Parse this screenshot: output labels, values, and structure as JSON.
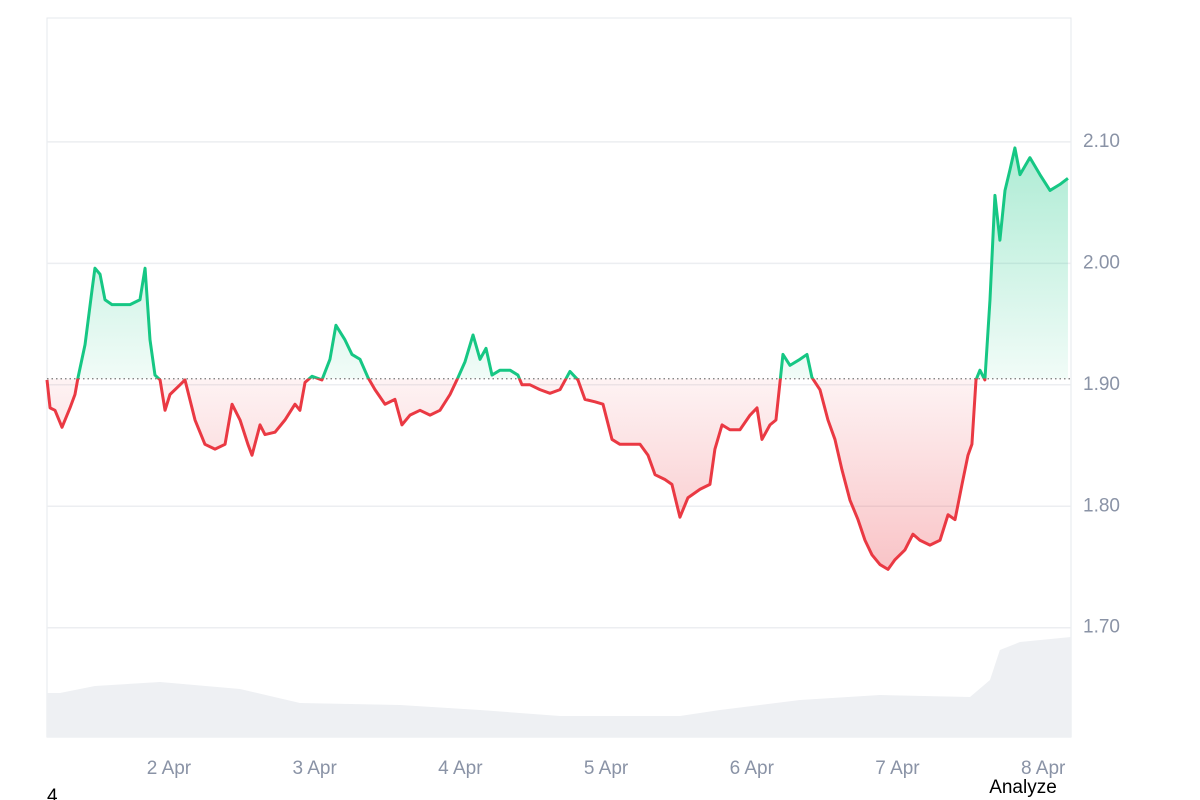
{
  "chart_data": {
    "type": "line",
    "xlim": [
      1.163,
      8.191
    ],
    "ylim": [
      1.61,
      2.202
    ],
    "y2lim": [
      0,
      100
    ],
    "grid": true,
    "baseline": 1.905,
    "xticks": [
      {
        "value": 2,
        "label": "2 Apr"
      },
      {
        "value": 3,
        "label": "3 Apr"
      },
      {
        "value": 4,
        "label": "4 Apr"
      },
      {
        "value": 5,
        "label": "5 Apr"
      },
      {
        "value": 6,
        "label": "6 Apr"
      },
      {
        "value": 7,
        "label": "7 Apr"
      },
      {
        "value": 8,
        "label": "8 Apr"
      }
    ],
    "yticks": [
      {
        "value": 1.7,
        "label": "1.70"
      },
      {
        "value": 1.8,
        "label": "1.80"
      },
      {
        "value": 1.9,
        "label": "1.90"
      },
      {
        "value": 2.0,
        "label": "2.00"
      },
      {
        "value": 2.1,
        "label": "2.10"
      }
    ],
    "series": [
      {
        "color_up": "#16c784",
        "color_down": "#ea3943",
        "x": [
          1.163,
          1.184,
          1.218,
          1.266,
          1.321,
          1.355,
          1.376,
          1.424,
          1.472,
          1.492,
          1.527,
          1.561,
          1.609,
          1.664,
          1.733,
          1.801,
          1.836,
          1.87,
          1.904,
          1.939,
          1.973,
          2.007,
          2.076,
          2.11,
          2.179,
          2.247,
          2.316,
          2.385,
          2.433,
          2.488,
          2.542,
          2.57,
          2.625,
          2.659,
          2.728,
          2.796,
          2.865,
          2.899,
          2.934,
          2.982,
          3.05,
          3.105,
          3.146,
          3.208,
          3.256,
          3.311,
          3.366,
          3.414,
          3.483,
          3.551,
          3.599,
          3.654,
          3.723,
          3.792,
          3.86,
          3.929,
          3.984,
          4.032,
          4.087,
          4.135,
          4.176,
          4.217,
          4.272,
          4.341,
          4.395,
          4.423,
          4.478,
          4.546,
          4.615,
          4.684,
          4.752,
          4.807,
          4.855,
          4.924,
          4.979,
          5.041,
          5.095,
          5.164,
          5.233,
          5.288,
          5.336,
          5.404,
          5.452,
          5.507,
          5.562,
          5.645,
          5.713,
          5.747,
          5.796,
          5.85,
          5.919,
          5.988,
          6.036,
          6.07,
          6.125,
          6.166,
          6.214,
          6.262,
          6.331,
          6.379,
          6.413,
          6.468,
          6.523,
          6.571,
          6.619,
          6.674,
          6.729,
          6.777,
          6.825,
          6.88,
          6.935,
          6.983,
          7.051,
          7.106,
          7.154,
          7.223,
          7.292,
          7.347,
          7.395,
          7.443,
          7.484,
          7.511,
          7.539,
          7.566,
          7.6,
          7.635,
          7.669,
          7.703,
          7.738,
          7.772,
          7.806,
          7.841,
          7.909,
          7.978,
          8.047,
          8.115,
          8.17
        ],
        "values": [
          1.904,
          1.881,
          1.879,
          1.865,
          1.881,
          1.892,
          1.906,
          1.933,
          1.978,
          1.996,
          1.991,
          1.97,
          1.966,
          1.966,
          1.966,
          1.97,
          1.996,
          1.937,
          1.908,
          1.904,
          1.879,
          1.892,
          1.9,
          1.904,
          1.871,
          1.851,
          1.847,
          1.851,
          1.884,
          1.871,
          1.851,
          1.842,
          1.867,
          1.859,
          1.861,
          1.871,
          1.884,
          1.879,
          1.902,
          1.907,
          1.904,
          1.921,
          1.949,
          1.937,
          1.925,
          1.921,
          1.906,
          1.896,
          1.884,
          1.888,
          1.867,
          1.875,
          1.879,
          1.875,
          1.879,
          1.892,
          1.906,
          1.919,
          1.941,
          1.921,
          1.93,
          1.908,
          1.912,
          1.912,
          1.908,
          1.9,
          1.9,
          1.896,
          1.893,
          1.896,
          1.911,
          1.904,
          1.888,
          1.886,
          1.884,
          1.855,
          1.851,
          1.851,
          1.851,
          1.842,
          1.826,
          1.822,
          1.818,
          1.791,
          1.807,
          1.814,
          1.818,
          1.847,
          1.867,
          1.863,
          1.863,
          1.875,
          1.881,
          1.855,
          1.867,
          1.871,
          1.925,
          1.916,
          1.921,
          1.925,
          1.906,
          1.896,
          1.871,
          1.855,
          1.83,
          1.805,
          1.789,
          1.772,
          1.76,
          1.752,
          1.748,
          1.756,
          1.764,
          1.777,
          1.772,
          1.768,
          1.772,
          1.793,
          1.789,
          1.818,
          1.842,
          1.851,
          1.904,
          1.912,
          1.904,
          1.97,
          2.056,
          2.019,
          2.06,
          2.077,
          2.095,
          2.073,
          2.087,
          2.073,
          2.06,
          2.065,
          2.07
        ]
      },
      {
        "type": "area",
        "axis": "y2",
        "color": "#eef0f3",
        "x": [
          1.163,
          1.252,
          1.492,
          1.939,
          2.488,
          2.899,
          3.586,
          4.135,
          4.684,
          5.507,
          5.782,
          6.331,
          6.88,
          7.498,
          7.635,
          7.703,
          7.841,
          8.191
        ],
        "values": [
          44,
          44,
          51,
          55,
          48,
          34,
          32,
          27,
          21,
          21,
          27,
          37,
          42,
          40,
          57,
          87,
          95,
          100
        ]
      }
    ]
  },
  "footer": {
    "left": "4",
    "right": "Analyze"
  }
}
